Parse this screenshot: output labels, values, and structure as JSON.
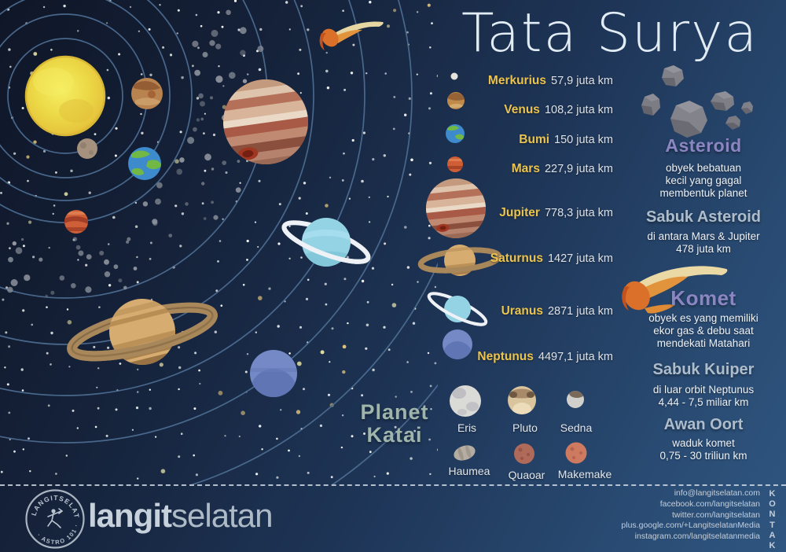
{
  "title": "Tata Surya",
  "planets": {
    "rows": [
      {
        "name": "Merkurius",
        "distance": "57,9 juta km"
      },
      {
        "name": "Venus",
        "distance": "108,2 juta km"
      },
      {
        "name": "Bumi",
        "distance": "150 juta km"
      },
      {
        "name": "Mars",
        "distance": "227,9 juta km"
      },
      {
        "name": "Jupiter",
        "distance": "778,3 juta km"
      },
      {
        "name": "Saturnus",
        "distance": "1427 juta km"
      },
      {
        "name": "Uranus",
        "distance": "2871 juta km"
      },
      {
        "name": "Neptunus",
        "distance": "4497,1 juta km"
      }
    ]
  },
  "sections": {
    "asteroid": {
      "heading": "Asteroid",
      "description": "obyek bebatuan\nkecil yang gagal\nmembentuk planet"
    },
    "sabuk_asteroid": {
      "heading": "Sabuk Asteroid",
      "description": "di antara Mars & Jupiter\n478 juta km"
    },
    "komet": {
      "heading": "Komet",
      "description": "obyek es yang memiliki\nekor gas & debu saat\nmendekati Matahari"
    },
    "sabuk_kuiper": {
      "heading": "Sabuk Kuiper",
      "description": "di luar orbit Neptunus\n4,44 - 7,5 miliar km"
    },
    "awan_oort": {
      "heading": "Awan Oort",
      "description": "waduk komet\n0,75 - 30 triliun km"
    }
  },
  "dwarf_planets": {
    "heading": "Planet\nKatai",
    "items": [
      "Eris",
      "Pluto",
      "Sedna",
      "Haumea",
      "Quaoar",
      "Makemake"
    ]
  },
  "footer": {
    "logo_bold": "langit",
    "logo_light": "selatan",
    "stamp_top": "LANGITSELATAN",
    "stamp_bottom": "· ASTRO 101 ·",
    "kontak_label": "KONTAK",
    "contacts": [
      "info@langitselatan.com",
      "facebook.com/langitselatan",
      "twitter.com/langitselatan",
      "plus.google.com/+LangitselatanMedia",
      "instagram.com/langitselatanmedia"
    ]
  },
  "colors": {
    "gold": "#ecc44d",
    "purple": "#8b86c2",
    "steel": "#aebdcb",
    "katai": "#9fb4aa",
    "text-light": "#eef1f4",
    "distance": "#dde2e8",
    "title": "#e2ecf4",
    "contact": "#c3ceda",
    "bg-dark": "#0f1627",
    "bg-mid": "#1e3557",
    "bg-light": "#2f5680"
  }
}
